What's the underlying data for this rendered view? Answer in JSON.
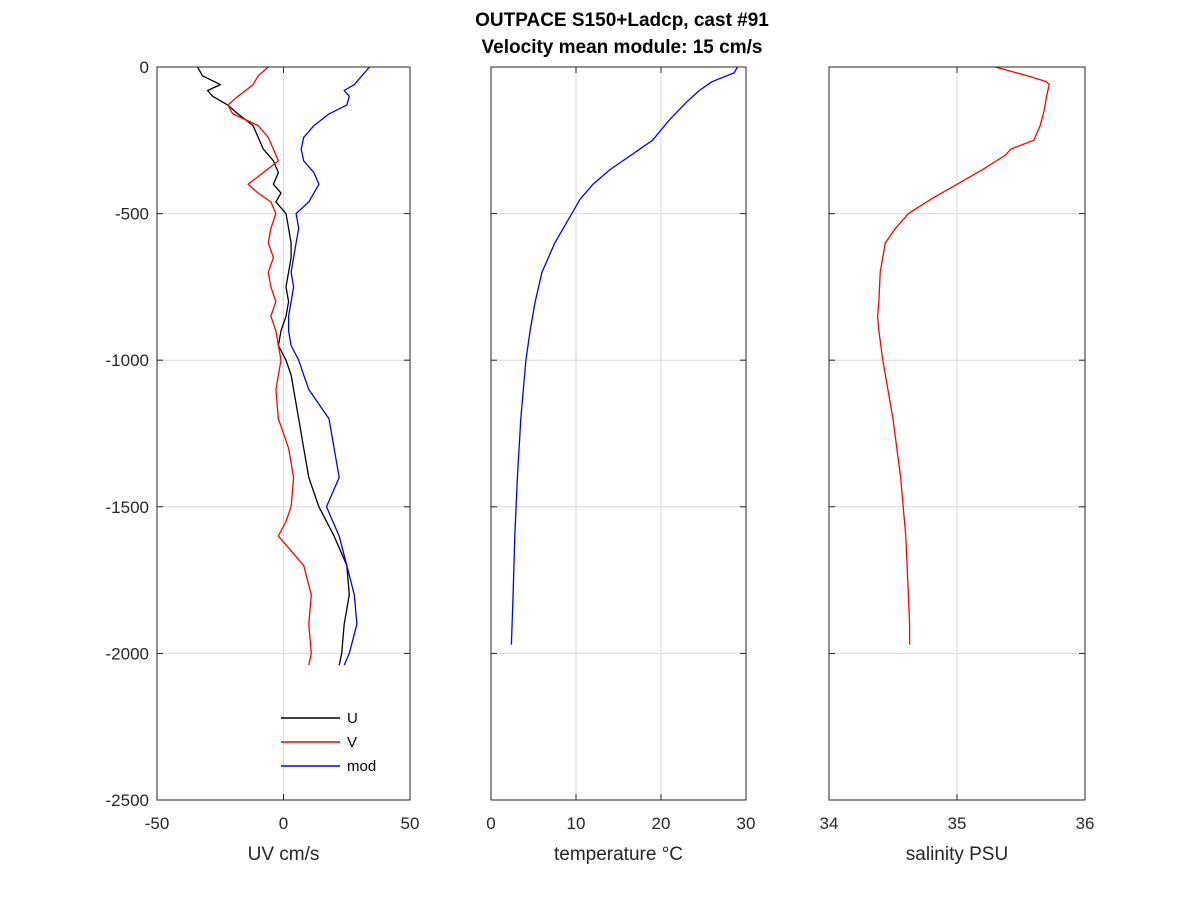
{
  "figure": {
    "title_line1": "OUTPACE S150+Ladcp, cast #91",
    "title_line2": "Velocity mean module:  15 cm/s"
  },
  "colors": {
    "U": "#000000",
    "V": "#ff0000",
    "mod": "#0000ff",
    "temperature": "#0000ff",
    "salinity": "#ff0000",
    "grid": "#d9d9d9",
    "axes": "#262626"
  },
  "chart_data": [
    {
      "type": "line",
      "xlabel": "UV cm/s",
      "ylabel": "",
      "xlim": [
        -50,
        50
      ],
      "ylim": [
        -2500,
        0
      ],
      "xticks": [
        -50,
        0,
        50
      ],
      "yticks": [
        0,
        -500,
        -1000,
        -1500,
        -2000,
        -2500
      ],
      "grid": true,
      "legend": "bottom-right",
      "series": [
        {
          "name": "U",
          "color": "#000000",
          "depth": [
            0,
            -30,
            -60,
            -80,
            -100,
            -130,
            -160,
            -200,
            -240,
            -280,
            -320,
            -360,
            -400,
            -430,
            -460,
            -500,
            -550,
            -600,
            -650,
            -700,
            -750,
            -800,
            -850,
            -900,
            -950,
            -1000,
            -1050,
            -1100,
            -1200,
            -1300,
            -1400,
            -1500,
            -1600,
            -1700,
            -1800,
            -1900,
            -2000,
            -2040
          ],
          "values": [
            -34,
            -32,
            -25,
            -30,
            -28,
            -22,
            -18,
            -12,
            -10,
            -8,
            -4,
            -2,
            -4,
            -1,
            -3,
            1,
            2,
            3,
            3,
            2,
            1,
            2,
            1,
            -1,
            -2,
            1,
            3,
            4,
            6,
            8,
            10,
            14,
            20,
            25,
            26,
            24,
            23,
            22
          ]
        },
        {
          "name": "V",
          "color": "#ff0000",
          "depth": [
            0,
            -30,
            -60,
            -80,
            -100,
            -130,
            -160,
            -200,
            -240,
            -280,
            -320,
            -360,
            -400,
            -430,
            -460,
            -500,
            -550,
            -600,
            -650,
            -700,
            -750,
            -800,
            -850,
            -900,
            -950,
            -1000,
            -1050,
            -1100,
            -1200,
            -1300,
            -1400,
            -1500,
            -1550,
            -1600,
            -1700,
            -1800,
            -1900,
            -2000,
            -2040
          ],
          "values": [
            -6,
            -10,
            -12,
            -15,
            -18,
            -22,
            -20,
            -10,
            -6,
            -4,
            -2,
            -8,
            -14,
            -10,
            -5,
            -3,
            -5,
            -6,
            -4,
            -6,
            -5,
            -3,
            -5,
            -3,
            -2,
            -1,
            -2,
            -3,
            -2,
            2,
            4,
            3,
            1,
            -2,
            8,
            11,
            10,
            11,
            10
          ]
        },
        {
          "name": "mod",
          "color": "#0000ff",
          "depth": [
            0,
            -30,
            -60,
            -80,
            -100,
            -130,
            -160,
            -200,
            -240,
            -280,
            -320,
            -360,
            -400,
            -430,
            -460,
            -500,
            -550,
            -600,
            -650,
            -700,
            -750,
            -800,
            -850,
            -900,
            -950,
            -1000,
            -1050,
            -1100,
            -1200,
            -1300,
            -1400,
            -1500,
            -1600,
            -1700,
            -1800,
            -1900,
            -2000,
            -2040
          ],
          "values": [
            34,
            31,
            28,
            24,
            26,
            25,
            18,
            12,
            8,
            7,
            8,
            12,
            14,
            12,
            10,
            5,
            6,
            5,
            4,
            3,
            4,
            3,
            2,
            2,
            3,
            6,
            8,
            10,
            18,
            20,
            22,
            17,
            22,
            25,
            28,
            29,
            26,
            24
          ]
        }
      ]
    },
    {
      "type": "line",
      "xlabel": "temperature °C",
      "ylabel": "",
      "xlim": [
        0,
        30
      ],
      "ylim": [
        -2500,
        0
      ],
      "xticks": [
        0,
        10,
        20,
        30
      ],
      "yticks": [
        0,
        -500,
        -1000,
        -1500,
        -2000,
        -2500
      ],
      "grid": true,
      "series": [
        {
          "name": "temperature",
          "color": "#0000ff",
          "depth": [
            0,
            -20,
            -50,
            -80,
            -120,
            -180,
            -250,
            -300,
            -350,
            -400,
            -450,
            -500,
            -550,
            -600,
            -700,
            -800,
            -900,
            -1000,
            -1200,
            -1400,
            -1600,
            -1800,
            -1970
          ],
          "values": [
            29,
            28.6,
            26,
            24.5,
            23,
            21,
            19,
            16.5,
            14,
            12,
            10.5,
            9.5,
            8.5,
            7.5,
            6,
            5.2,
            4.6,
            4.1,
            3.5,
            3.1,
            2.8,
            2.6,
            2.4
          ]
        }
      ]
    },
    {
      "type": "line",
      "xlabel": "salinity PSU",
      "ylabel": "",
      "xlim": [
        34,
        36
      ],
      "ylim": [
        -2500,
        0
      ],
      "xticks": [
        34,
        35,
        36
      ],
      "yticks": [
        0,
        -500,
        -1000,
        -1500,
        -2000,
        -2500
      ],
      "grid": true,
      "series": [
        {
          "name": "salinity",
          "color": "#ff0000",
          "depth": [
            0,
            -30,
            -50,
            -60,
            -100,
            -150,
            -200,
            -250,
            -280,
            -300,
            -350,
            -400,
            -450,
            -500,
            -550,
            -600,
            -700,
            -800,
            -850,
            -900,
            -1000,
            -1100,
            -1200,
            -1300,
            -1400,
            -1500,
            -1600,
            -1700,
            -1800,
            -1900,
            -1970
          ],
          "values": [
            35.3,
            35.55,
            35.7,
            35.72,
            35.7,
            35.68,
            35.65,
            35.6,
            35.42,
            35.38,
            35.2,
            35.0,
            34.8,
            34.62,
            34.52,
            34.44,
            34.4,
            34.39,
            34.38,
            34.39,
            34.42,
            34.46,
            34.5,
            34.53,
            34.56,
            34.58,
            34.6,
            34.61,
            34.62,
            34.63,
            34.63
          ]
        }
      ]
    }
  ]
}
